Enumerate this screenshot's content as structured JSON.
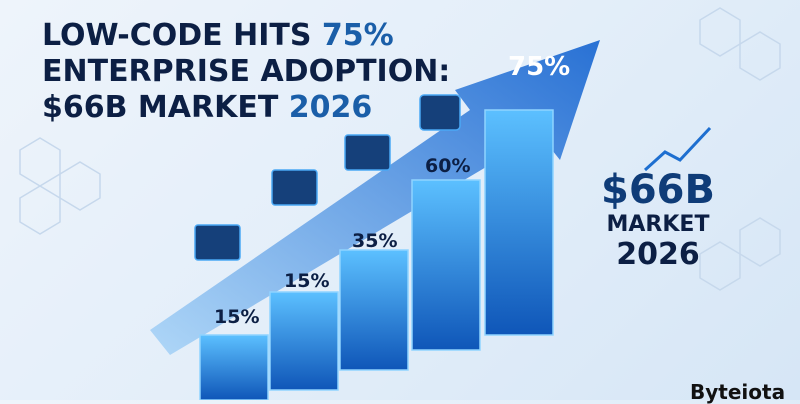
{
  "headline": {
    "line1_a": "LOW-CODE HITS ",
    "line1_b": "75%",
    "line2": "ENTERPRISE ADOPTION:",
    "line3_a": "$66B MARKET ",
    "line3_b": "2026"
  },
  "bars": [
    {
      "label": "15%",
      "value": 15
    },
    {
      "label": "15%",
      "value": 15
    },
    {
      "label": "35%",
      "value": 35
    },
    {
      "label": "60%",
      "value": 60
    },
    {
      "label": "75%",
      "value": 75
    }
  ],
  "market": {
    "amount": "$66B",
    "label": "MARKET",
    "year": "2026"
  },
  "watermark": "Byteiota",
  "colors": {
    "navy": "#0c1f44",
    "accent": "#1a5ea8",
    "bar": "#2a8ee8",
    "arrow": "#1e6fd0"
  }
}
